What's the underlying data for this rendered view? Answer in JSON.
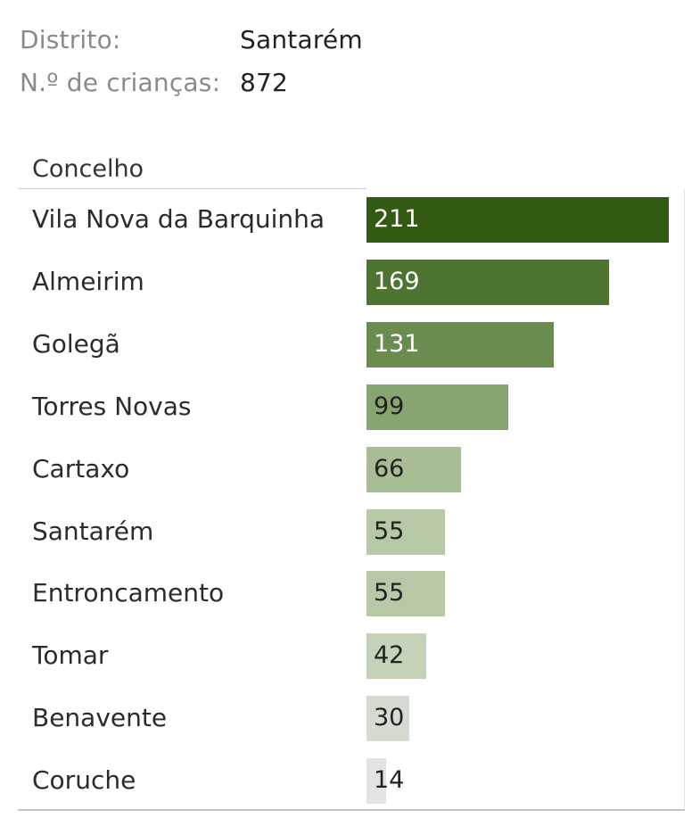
{
  "info": {
    "district_label": "Distrito:",
    "district_value": "Santarém",
    "children_label": "N.º de crianças:",
    "children_value": "872"
  },
  "chart_data": {
    "type": "bar",
    "orientation": "horizontal",
    "column_header": "Concelho",
    "categories": [
      "Vila Nova da Barquinha",
      "Almeirim",
      "Golegã",
      "Torres Novas",
      "Cartaxo",
      "Santarém",
      "Entroncamento",
      "Tomar",
      "Benavente",
      "Coruche"
    ],
    "values": [
      211,
      169,
      131,
      99,
      66,
      55,
      55,
      42,
      30,
      14
    ],
    "data_labels": [
      "211",
      "169",
      "131",
      "99",
      "66",
      "55",
      "55",
      "42",
      "30",
      "14"
    ],
    "bar_colors": [
      "#325a12",
      "#4d7430",
      "#6a8c4e",
      "#87a570",
      "#a7be94",
      "#b6c9a6",
      "#b6c9a6",
      "#c4d2b9",
      "#d5dbd0",
      "#e3e3e3"
    ],
    "label_colors": [
      "#ffffff",
      "#ffffff",
      "#ffffff",
      "#222222",
      "#222222",
      "#222222",
      "#222222",
      "#222222",
      "#222222",
      "#222222"
    ]
  }
}
